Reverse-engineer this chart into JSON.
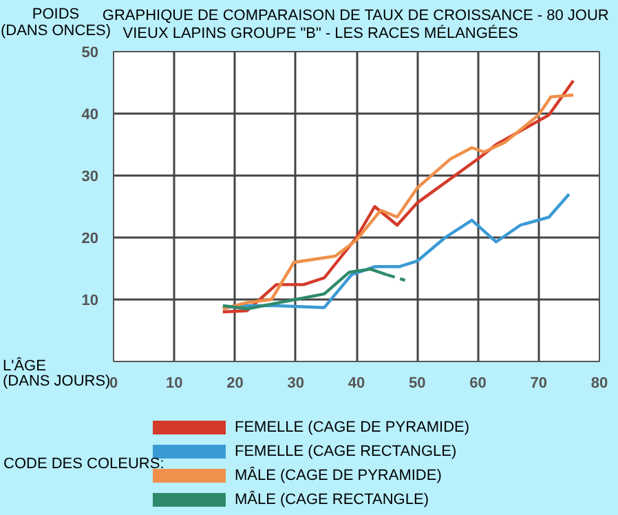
{
  "chart_data": {
    "type": "line",
    "title": "GRAPHIQUE DE COMPARAISON DE TAUX DE CROISSANCE - 80 JOUR",
    "subtitle": "VIEUX LAPINS      GROUPE \"B\" - LES RACES MÉLANGÉES",
    "xlabel": "L'ÂGE\n(DANS JOURS)",
    "ylabel": "POIDS\n(DANS ONCES)",
    "legend_title": "CODE DES COLEURS:",
    "xlim": [
      0,
      80
    ],
    "ylim": [
      0,
      50
    ],
    "xticks": [
      0,
      10,
      20,
      30,
      40,
      50,
      60,
      70,
      80
    ],
    "yticks": [
      {
        "value": 0,
        "label": null
      },
      10,
      20,
      30,
      40,
      50
    ],
    "grid": true,
    "legend": "bottom",
    "line_style": "solid",
    "series": [
      {
        "name": "FEMELLE (CAGE DE PYRAMIDE)",
        "color": "#d43a2a",
        "x": [
          18,
          22,
          26.8,
          31.3,
          34.7,
          40,
          43,
          46.7,
          50,
          60,
          63,
          71.7,
          75.7
        ],
        "values": [
          8,
          8.2,
          12.4,
          12.4,
          13.5,
          20,
          25,
          22,
          25.6,
          32.7,
          35,
          39.8,
          45.3
        ]
      },
      {
        "name": "FEMELLE (CAGE RECTANGLE)",
        "color": "#3a9ad4",
        "x": [
          18,
          20,
          26.8,
          34.7,
          39.2,
          43,
          47,
          50,
          54.6,
          59,
          63,
          67,
          71.7,
          75
        ],
        "values": [
          8.5,
          9,
          9,
          8.7,
          14,
          15.3,
          15.3,
          16.2,
          20,
          22.8,
          19.3,
          22,
          23.3,
          27
        ]
      },
      {
        "name": "MÂLE (CAGE DE PYRAMIDE)",
        "color": "#f0904a",
        "x": [
          18,
          22,
          26,
          29.7,
          36.5,
          40,
          44,
          46.7,
          50,
          55.5,
          59,
          61,
          64.5,
          70,
          72,
          75.7
        ],
        "values": [
          8.5,
          9.5,
          10,
          16,
          17,
          19.6,
          24.4,
          23.3,
          28,
          32.7,
          34.5,
          33.8,
          35.4,
          39.8,
          42.7,
          43
        ]
      },
      {
        "name": "MÂLE (CAGE RECTANGLE)",
        "color": "#2e8a6a",
        "x": [
          18,
          22,
          26.8,
          34.7,
          38.8,
          42.3,
          45
        ],
        "values": [
          9,
          8.5,
          9.4,
          10.9,
          14.4,
          14.9,
          14
        ]
      },
      {
        "color": "#2e8a6a",
        "line_style": "dashed",
        "x": [
          45,
          48
        ],
        "values": [
          14,
          13.1
        ]
      }
    ]
  }
}
